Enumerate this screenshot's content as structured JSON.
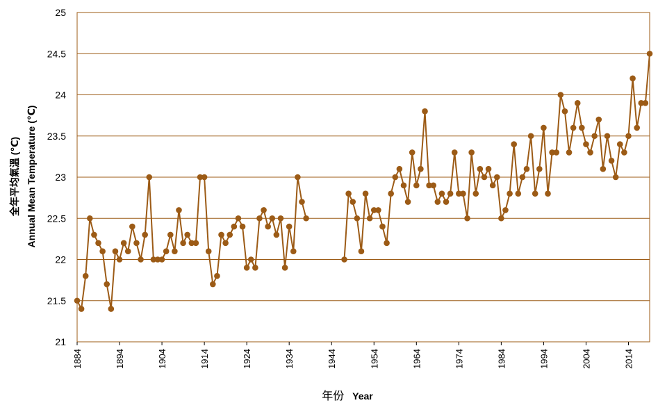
{
  "chart_data": {
    "type": "line",
    "title": "",
    "ylabel_cjk": "全年平均氣溫 (℃)",
    "ylabel_en": "Annual Mean Temperature (℃)",
    "xlabel_cjk": "年份",
    "xlabel_en": "Year",
    "xlim": [
      1884,
      2019
    ],
    "ylim": [
      21,
      25
    ],
    "xticks": [
      1884,
      1894,
      1904,
      1914,
      1924,
      1934,
      1944,
      1954,
      1964,
      1974,
      1984,
      1994,
      2004,
      2014
    ],
    "yticks": [
      "21",
      "21.5",
      "22",
      "22.5",
      "23",
      "23.5",
      "24",
      "24.5",
      "25"
    ],
    "grid": "horizontal",
    "colors": {
      "series": "#9c5b16",
      "grid": "#9c5b16",
      "frame": "#9c5b16"
    },
    "series": [
      {
        "x": [
          1884,
          1885,
          1886,
          1887,
          1888,
          1889,
          1890,
          1891,
          1892,
          1893,
          1894,
          1895,
          1896,
          1897,
          1898,
          1899,
          1900,
          1901,
          1902,
          1903,
          1904,
          1905,
          1906,
          1907,
          1908,
          1909,
          1910,
          1911,
          1912,
          1913,
          1914,
          1915,
          1916,
          1917,
          1918,
          1919,
          1920,
          1921,
          1922,
          1923,
          1924,
          1925,
          1926,
          1927,
          1928,
          1929,
          1930,
          1931,
          1932,
          1933,
          1934,
          1935,
          1936,
          1937,
          1938,
          1939,
          1940,
          1947,
          1948,
          1949,
          1950,
          1951,
          1952,
          1953,
          1954,
          1955,
          1956,
          1957,
          1958,
          1959,
          1960,
          1961,
          1962,
          1963,
          1964,
          1965,
          1966,
          1967,
          1968,
          1969,
          1970,
          1971,
          1972,
          1973,
          1974,
          1975,
          1976,
          1977,
          1978,
          1979,
          1980,
          1981,
          1982,
          1983,
          1984,
          1985,
          1986,
          1987,
          1988,
          1989,
          1990,
          1991,
          1992,
          1993,
          1994,
          1995,
          1996,
          1997,
          1998,
          1999,
          2000,
          2001,
          2002,
          2003,
          2004,
          2005,
          2006,
          2007,
          2008,
          2009,
          2010,
          2011,
          2012,
          2013,
          2014,
          2015,
          2016,
          2017,
          2018,
          2019
        ],
        "values": [
          21.5,
          21.4,
          21.8,
          22.5,
          22.3,
          22.2,
          22.1,
          21.7,
          21.4,
          22.1,
          22.0,
          22.2,
          22.1,
          22.4,
          22.2,
          22.0,
          22.3,
          23.0,
          22.0,
          22.0,
          22.0,
          22.1,
          22.3,
          22.1,
          22.6,
          22.2,
          22.3,
          22.2,
          22.2,
          23.0,
          23.0,
          22.1,
          21.7,
          21.8,
          22.3,
          22.2,
          22.3,
          22.4,
          22.5,
          22.4,
          21.9,
          22.0,
          21.9,
          22.5,
          22.6,
          22.4,
          22.5,
          22.3,
          22.5,
          21.9,
          22.4,
          22.1,
          23.0,
          22.7,
          22.5,
          null,
          null,
          22.0,
          22.8,
          22.7,
          22.5,
          22.1,
          22.8,
          22.5,
          22.6,
          22.6,
          22.4,
          22.2,
          22.8,
          23.0,
          23.1,
          22.9,
          22.7,
          23.3,
          22.9,
          23.1,
          23.8,
          22.9,
          22.9,
          22.7,
          22.8,
          22.7,
          22.8,
          23.3,
          22.8,
          22.8,
          22.5,
          23.3,
          22.8,
          23.1,
          23.0,
          23.1,
          22.9,
          23.0,
          22.5,
          22.6,
          22.8,
          23.4,
          22.8,
          23.0,
          23.1,
          23.5,
          22.8,
          23.1,
          23.6,
          22.8,
          23.3,
          23.3,
          24.0,
          23.8,
          23.3,
          23.6,
          23.9,
          23.6,
          23.4,
          23.3,
          23.5,
          23.7,
          23.1,
          23.5,
          23.2,
          23.0,
          23.4,
          23.3,
          23.5,
          24.2,
          23.6,
          23.9,
          23.9,
          24.5
        ]
      }
    ]
  }
}
